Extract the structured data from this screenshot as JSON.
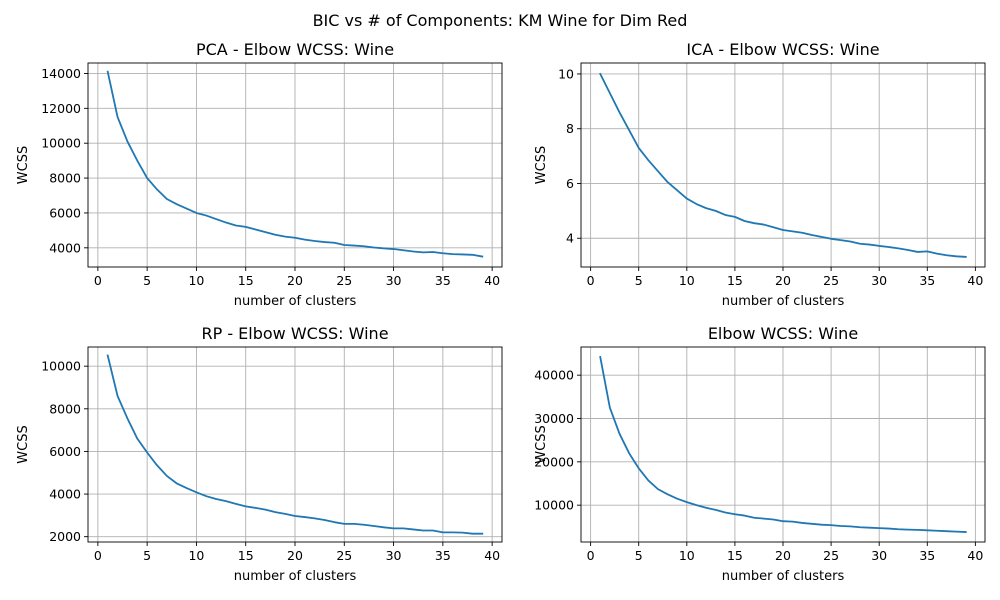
{
  "figure": {
    "suptitle": "BIC vs # of Components: KM Wine for Dim Red",
    "line_color": "#1f77b4",
    "grid": true
  },
  "chart_data": [
    {
      "type": "line",
      "title": "PCA - Elbow WCSS: Wine",
      "xlabel": "number of clusters",
      "ylabel": "WCSS",
      "xlim": [
        -1,
        41
      ],
      "ylim": [
        2900,
        14600
      ],
      "xticks": [
        0,
        5,
        10,
        15,
        20,
        25,
        30,
        35,
        40
      ],
      "yticks": [
        4000,
        6000,
        8000,
        10000,
        12000,
        14000
      ],
      "x": [
        1,
        2,
        3,
        4,
        5,
        6,
        7,
        8,
        9,
        10,
        11,
        12,
        13,
        14,
        15,
        16,
        17,
        18,
        19,
        20,
        21,
        22,
        23,
        24,
        25,
        26,
        27,
        28,
        29,
        30,
        31,
        32,
        33,
        34,
        35,
        36,
        37,
        38,
        39
      ],
      "values": [
        14100,
        11500,
        10100,
        9000,
        8000,
        7350,
        6800,
        6500,
        6250,
        6000,
        5850,
        5650,
        5450,
        5280,
        5200,
        5050,
        4900,
        4750,
        4640,
        4580,
        4470,
        4390,
        4330,
        4290,
        4160,
        4130,
        4090,
        4020,
        3970,
        3930,
        3860,
        3790,
        3740,
        3760,
        3690,
        3640,
        3620,
        3600,
        3500
      ]
    },
    {
      "type": "line",
      "title": "ICA - Elbow WCSS: Wine",
      "xlabel": "number of clusters",
      "ylabel": "WCSS",
      "xlim": [
        -1,
        41
      ],
      "ylim": [
        2.95,
        10.4
      ],
      "xticks": [
        0,
        5,
        10,
        15,
        20,
        25,
        30,
        35,
        40
      ],
      "yticks": [
        4,
        6,
        8,
        10
      ],
      "x": [
        1,
        2,
        3,
        4,
        5,
        6,
        7,
        8,
        9,
        10,
        11,
        12,
        13,
        14,
        15,
        16,
        17,
        18,
        19,
        20,
        21,
        22,
        23,
        24,
        25,
        26,
        27,
        28,
        29,
        30,
        31,
        32,
        33,
        34,
        35,
        36,
        37,
        38,
        39
      ],
      "values": [
        10.0,
        9.3,
        8.6,
        7.95,
        7.3,
        6.85,
        6.45,
        6.05,
        5.75,
        5.45,
        5.25,
        5.1,
        5.0,
        4.85,
        4.78,
        4.63,
        4.55,
        4.5,
        4.4,
        4.3,
        4.25,
        4.2,
        4.12,
        4.05,
        3.98,
        3.93,
        3.88,
        3.8,
        3.77,
        3.72,
        3.68,
        3.63,
        3.57,
        3.5,
        3.52,
        3.44,
        3.38,
        3.34,
        3.32
      ]
    },
    {
      "type": "line",
      "title": "RP - Elbow WCSS: Wine",
      "xlabel": "number of clusters",
      "ylabel": "WCSS",
      "xlim": [
        -1,
        41
      ],
      "ylim": [
        1750,
        10900
      ],
      "xticks": [
        0,
        5,
        10,
        15,
        20,
        25,
        30,
        35,
        40
      ],
      "yticks": [
        2000,
        4000,
        6000,
        8000,
        10000
      ],
      "x": [
        1,
        2,
        3,
        4,
        5,
        6,
        7,
        8,
        9,
        10,
        11,
        12,
        13,
        14,
        15,
        16,
        17,
        18,
        19,
        20,
        21,
        22,
        23,
        24,
        25,
        26,
        27,
        28,
        29,
        30,
        31,
        32,
        33,
        34,
        35,
        36,
        37,
        38,
        39
      ],
      "values": [
        10500,
        8600,
        7550,
        6600,
        5950,
        5350,
        4850,
        4500,
        4280,
        4080,
        3900,
        3770,
        3670,
        3540,
        3420,
        3350,
        3270,
        3150,
        3070,
        2970,
        2920,
        2860,
        2780,
        2680,
        2600,
        2600,
        2560,
        2500,
        2440,
        2390,
        2390,
        2340,
        2290,
        2290,
        2200,
        2200,
        2190,
        2140,
        2140
      ]
    },
    {
      "type": "line",
      "title": "Elbow WCSS: Wine",
      "xlabel": "number of clusters",
      "ylabel": "WCSS",
      "xlim": [
        -1,
        41
      ],
      "ylim": [
        1500,
        46500
      ],
      "xticks": [
        0,
        5,
        10,
        15,
        20,
        25,
        30,
        35,
        40
      ],
      "yticks": [
        10000,
        20000,
        30000,
        40000
      ],
      "x": [
        1,
        2,
        3,
        4,
        5,
        6,
        7,
        8,
        9,
        10,
        11,
        12,
        13,
        14,
        15,
        16,
        17,
        18,
        19,
        20,
        21,
        22,
        23,
        24,
        25,
        26,
        27,
        28,
        29,
        30,
        31,
        32,
        33,
        34,
        35,
        36,
        37,
        38,
        39
      ],
      "values": [
        44200,
        32500,
        26500,
        22000,
        18500,
        15700,
        13700,
        12500,
        11500,
        10700,
        10000,
        9400,
        8900,
        8300,
        7900,
        7600,
        7100,
        6900,
        6700,
        6300,
        6200,
        5900,
        5700,
        5500,
        5400,
        5200,
        5100,
        4900,
        4800,
        4700,
        4600,
        4450,
        4350,
        4300,
        4200,
        4100,
        4000,
        3900,
        3800
      ]
    }
  ]
}
